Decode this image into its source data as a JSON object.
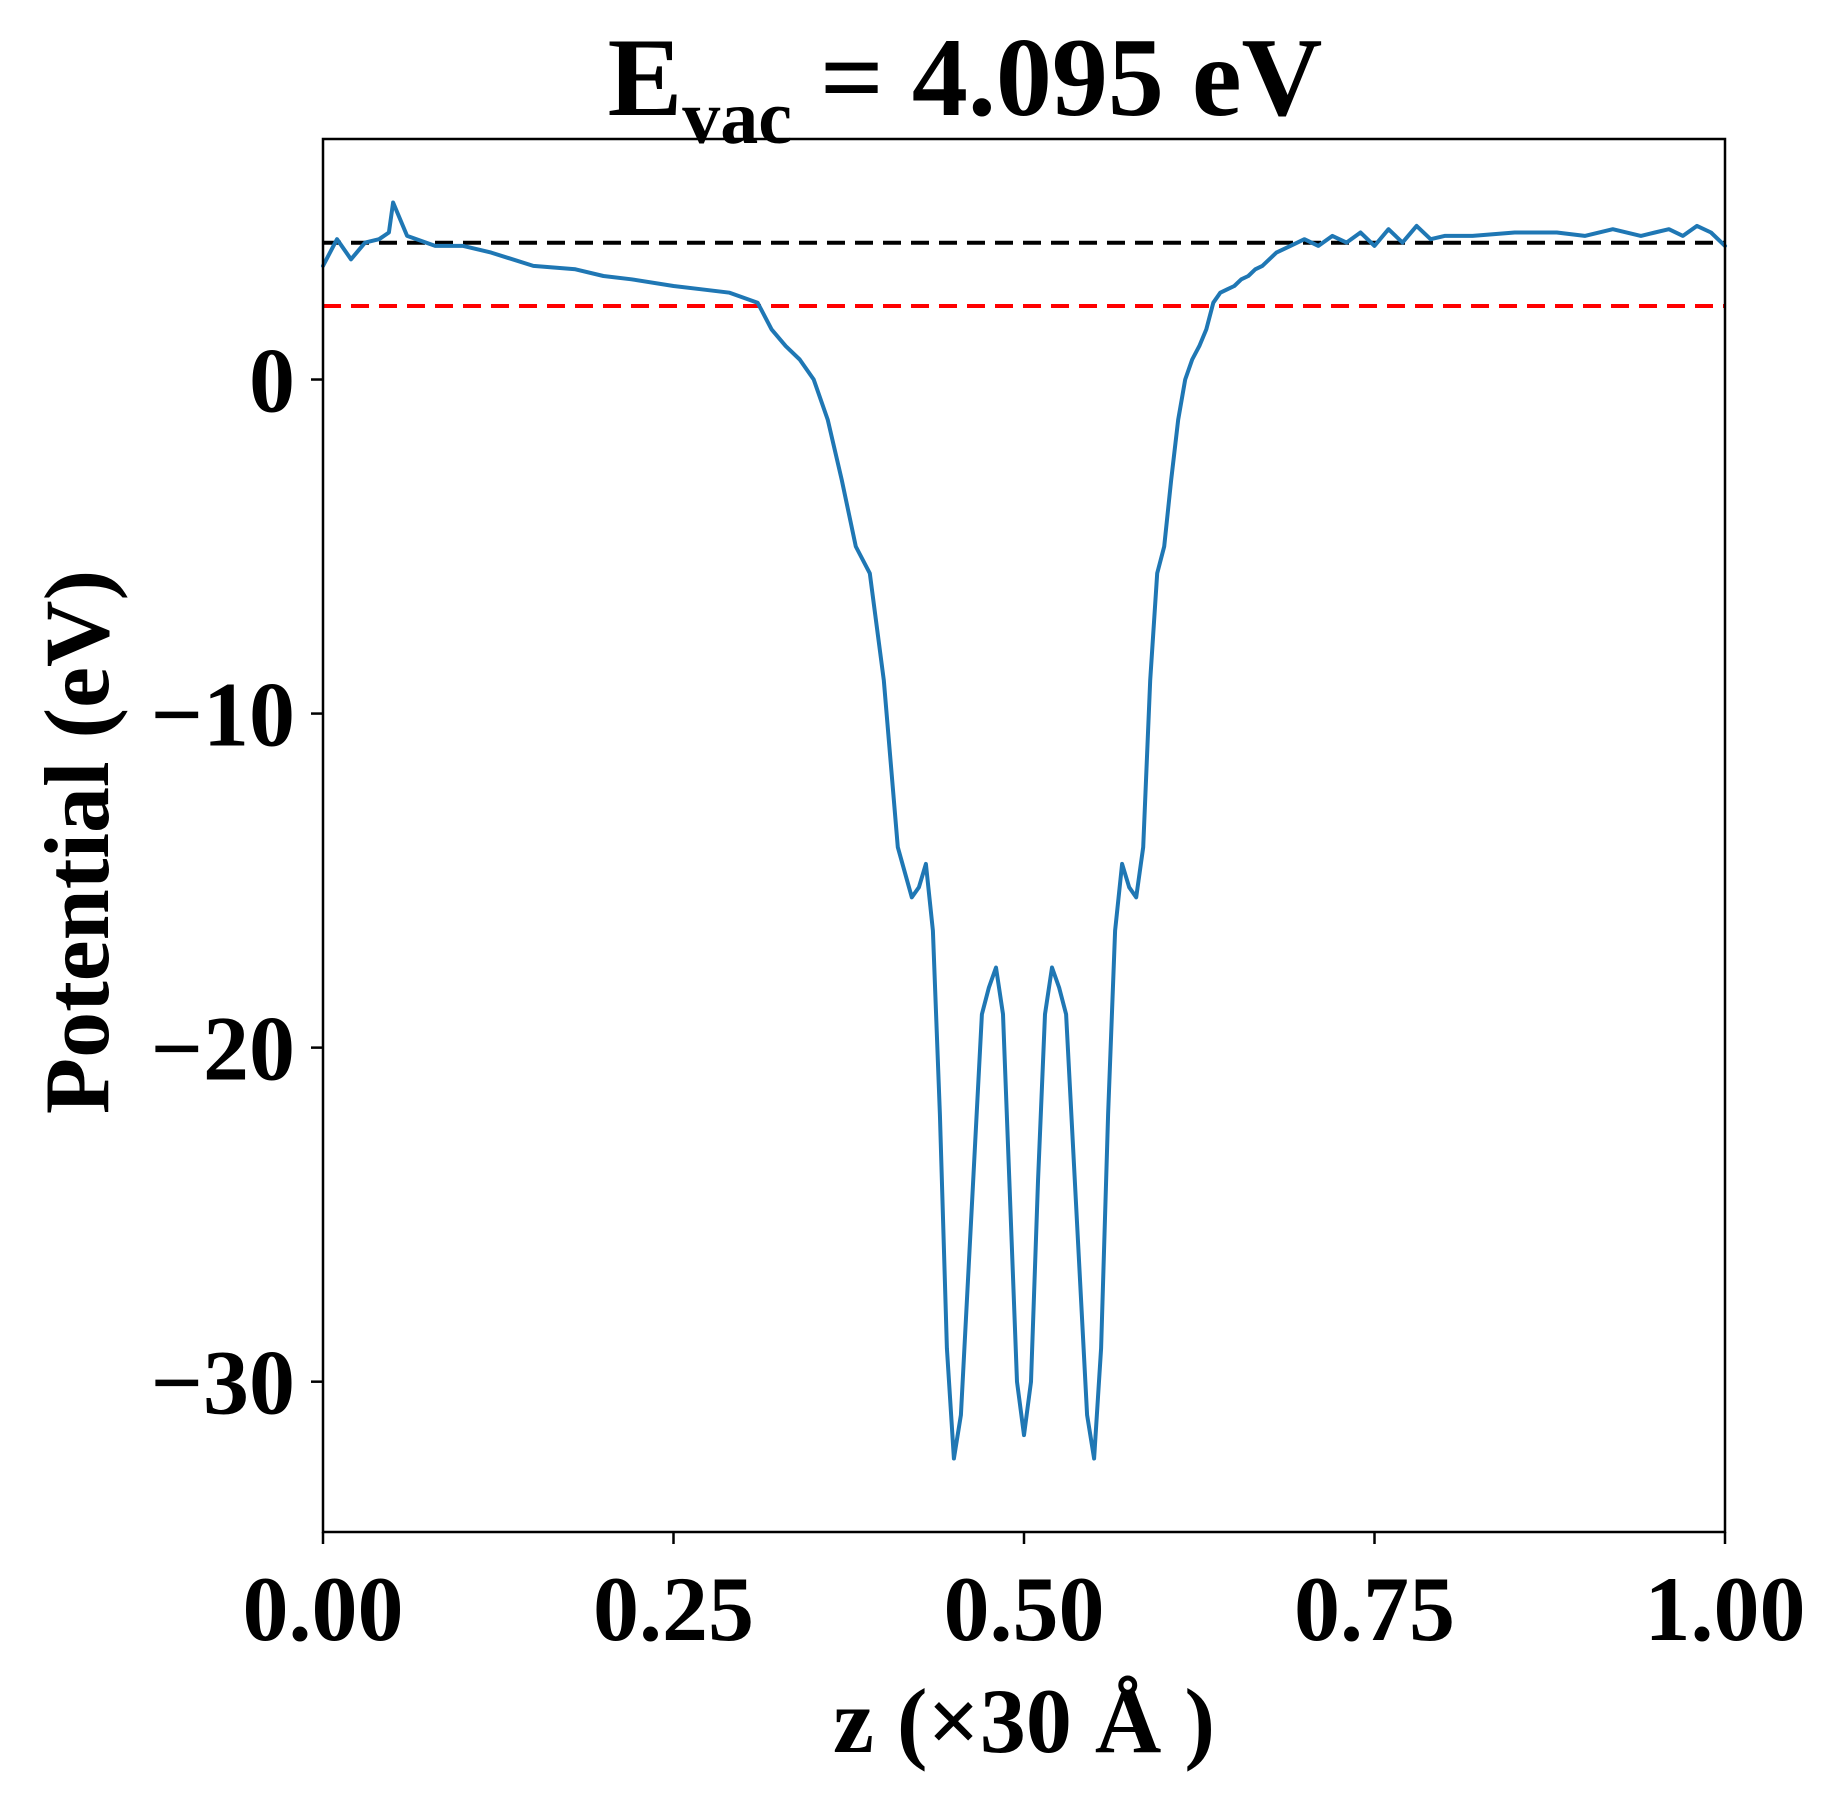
{
  "chart_data": {
    "type": "line",
    "title": {
      "prefix": "E",
      "subscript": "vac",
      "suffix": " = 4.095 eV"
    },
    "xlabel": "z (×30 Å )",
    "ylabel": "Potential (eV)",
    "xlim": [
      0.0,
      1.0
    ],
    "ylim": [
      -34.5,
      7.2
    ],
    "xticks": [
      0.0,
      0.25,
      0.5,
      0.75,
      1.0
    ],
    "xtick_labels": [
      "0.00",
      "0.25",
      "0.50",
      "0.75",
      "1.00"
    ],
    "yticks": [
      0,
      -10,
      -20,
      -30
    ],
    "ytick_labels": [
      "0",
      "−10",
      "−20",
      "−30"
    ],
    "grid": false,
    "hlines": [
      {
        "y": 4.095,
        "color": "#000000",
        "style": "dashed"
      },
      {
        "y": 2.2,
        "color": "#ff0000",
        "style": "dashed"
      }
    ],
    "series": [
      {
        "color": "#1f77b4",
        "x": [
          0.0,
          0.01,
          0.02,
          0.03,
          0.04,
          0.047,
          0.05,
          0.06,
          0.08,
          0.1,
          0.12,
          0.15,
          0.18,
          0.2,
          0.22,
          0.25,
          0.27,
          0.29,
          0.31,
          0.32,
          0.33,
          0.34,
          0.35,
          0.36,
          0.37,
          0.38,
          0.39,
          0.4,
          0.41,
          0.42,
          0.425,
          0.43,
          0.435,
          0.44,
          0.445,
          0.45,
          0.455,
          0.46,
          0.465,
          0.47,
          0.475,
          0.48,
          0.485,
          0.49,
          0.495,
          0.5,
          0.505,
          0.51,
          0.515,
          0.52,
          0.525,
          0.53,
          0.535,
          0.54,
          0.545,
          0.55,
          0.555,
          0.56,
          0.565,
          0.57,
          0.575,
          0.58,
          0.585,
          0.59,
          0.595,
          0.6,
          0.605,
          0.61,
          0.615,
          0.62,
          0.625,
          0.63,
          0.635,
          0.64,
          0.645,
          0.65,
          0.655,
          0.66,
          0.665,
          0.67,
          0.675,
          0.68,
          0.69,
          0.7,
          0.71,
          0.72,
          0.73,
          0.74,
          0.75,
          0.76,
          0.77,
          0.78,
          0.79,
          0.8,
          0.82,
          0.85,
          0.88,
          0.9,
          0.92,
          0.94,
          0.95,
          0.96,
          0.97,
          0.98,
          0.99,
          1.0
        ],
        "y": [
          3.4,
          4.2,
          3.6,
          4.1,
          4.2,
          4.4,
          5.3,
          4.3,
          4.0,
          4.0,
          3.8,
          3.4,
          3.3,
          3.1,
          3.0,
          2.8,
          2.7,
          2.6,
          2.3,
          1.5,
          1.0,
          0.6,
          0.0,
          -1.2,
          -3.0,
          -5.0,
          -5.8,
          -9.0,
          -14.0,
          -15.5,
          -15.2,
          -14.5,
          -16.5,
          -22.0,
          -29.0,
          -32.3,
          -31.0,
          -27.0,
          -23.0,
          -19.0,
          -18.2,
          -17.6,
          -19.0,
          -24.5,
          -30.0,
          -31.6,
          -30.0,
          -24.0,
          -19.0,
          -17.6,
          -18.2,
          -19.0,
          -23.0,
          -27.0,
          -31.0,
          -32.3,
          -29.0,
          -22.0,
          -16.5,
          -14.5,
          -15.2,
          -15.5,
          -14.0,
          -9.0,
          -5.8,
          -5.0,
          -3.0,
          -1.2,
          0.0,
          0.6,
          1.0,
          1.5,
          2.3,
          2.6,
          2.7,
          2.8,
          3.0,
          3.1,
          3.3,
          3.4,
          3.6,
          3.8,
          4.0,
          4.2,
          4.0,
          4.3,
          4.1,
          4.4,
          4.0,
          4.5,
          4.1,
          4.6,
          4.2,
          4.3,
          4.3,
          4.4,
          4.4,
          4.3,
          4.5,
          4.3,
          4.4,
          4.5,
          4.3,
          4.6,
          4.4,
          4.0
        ]
      }
    ]
  }
}
